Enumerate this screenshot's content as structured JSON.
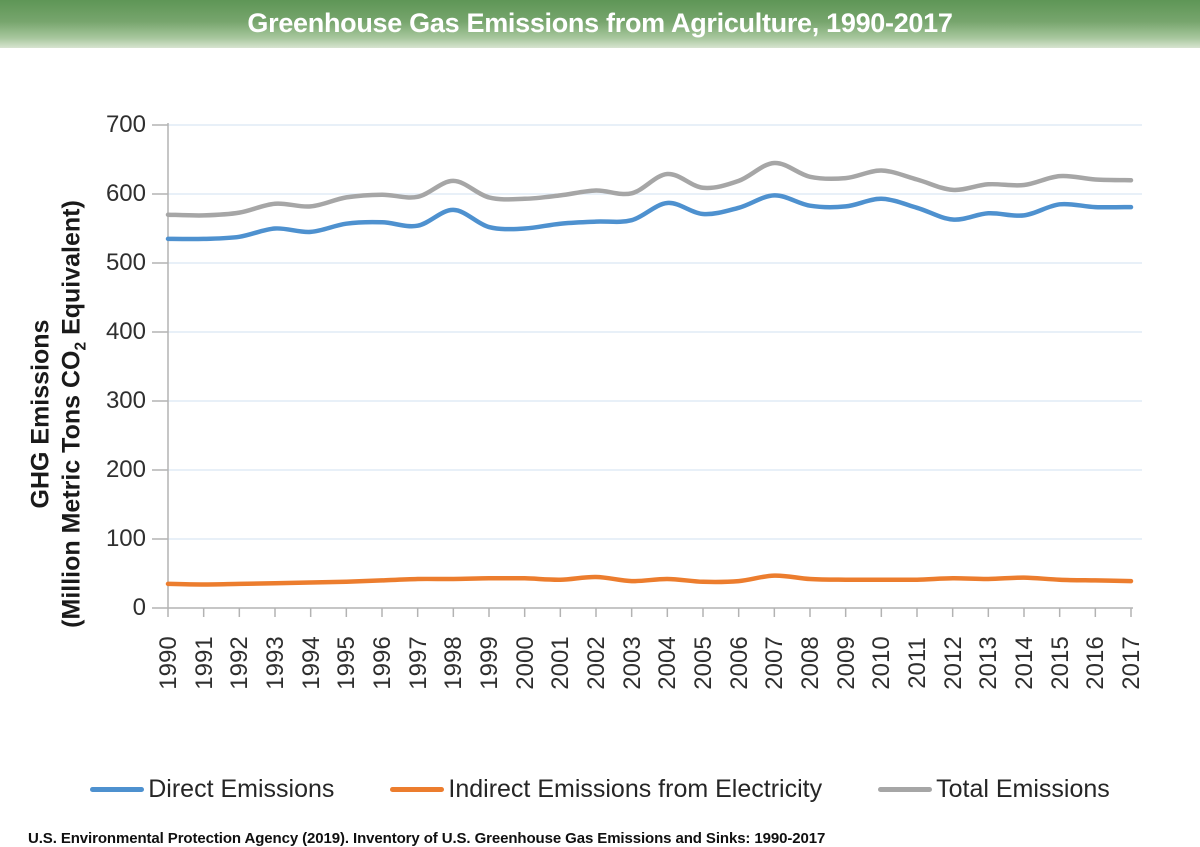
{
  "header": {
    "title": "Greenhouse Gas Emissions from Agriculture, 1990-2017",
    "gradient_top": "#5e9656",
    "gradient_bottom": "#d7e4d0",
    "title_color": "#ffffff"
  },
  "y_axis": {
    "title_line1": "GHG Emissions",
    "title_line2_pre": "(Million Metric Tons CO",
    "title_line2_sub": "2",
    "title_line2_post": " Equivalent)"
  },
  "footer": {
    "source": "U.S. Environmental Protection Agency (2019). Inventory of U.S. Greenhouse Gas Emissions and Sinks: 1990-2017"
  },
  "colors": {
    "gridline": "#d9e6f3",
    "axis": "#b3b3b3",
    "tick_text": "#2f2f2f"
  },
  "chart_data": {
    "type": "line",
    "title": "Greenhouse Gas Emissions from Agriculture, 1990-2017",
    "ylabel": "GHG Emissions (Million Metric Tons CO2 Equivalent)",
    "xlabel": "",
    "ylim": [
      0,
      700
    ],
    "y_ticks": [
      0,
      100,
      200,
      300,
      400,
      500,
      600,
      700
    ],
    "grid": true,
    "smooth": true,
    "legend_position": "bottom",
    "x_tick_rotation": -90,
    "x": [
      1990,
      1991,
      1992,
      1993,
      1994,
      1995,
      1996,
      1997,
      1998,
      1999,
      2000,
      2001,
      2002,
      2003,
      2004,
      2005,
      2006,
      2007,
      2008,
      2009,
      2010,
      2011,
      2012,
      2013,
      2014,
      2015,
      2016,
      2017
    ],
    "series": [
      {
        "name": "Direct Emissions",
        "color": "#4e91cf",
        "values": [
          535,
          535,
          538,
          550,
          545,
          557,
          559,
          554,
          577,
          552,
          550,
          557,
          560,
          562,
          587,
          571,
          580,
          598,
          583,
          582,
          593,
          580,
          563,
          572,
          569,
          585,
          581,
          581
        ]
      },
      {
        "name": "Indirect Emissions from Electricity",
        "color": "#ec7d2e",
        "values": [
          35,
          34,
          35,
          36,
          37,
          38,
          40,
          42,
          42,
          43,
          43,
          41,
          45,
          39,
          42,
          38,
          39,
          47,
          42,
          41,
          41,
          41,
          43,
          42,
          44,
          41,
          40,
          39
        ]
      },
      {
        "name": "Total Emissions",
        "color": "#a6a6a6",
        "values": [
          570,
          569,
          573,
          586,
          582,
          595,
          599,
          596,
          619,
          595,
          593,
          598,
          605,
          601,
          629,
          609,
          619,
          645,
          625,
          623,
          634,
          621,
          606,
          614,
          613,
          626,
          621,
          620
        ]
      }
    ]
  }
}
